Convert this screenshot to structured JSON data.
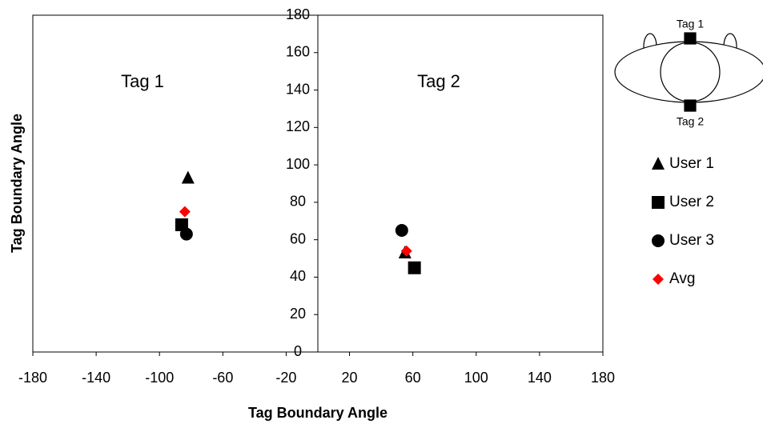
{
  "chart_data": {
    "type": "scatter",
    "xlabel": "Tag Boundary Angle",
    "ylabel": "Tag Boundary Angle",
    "xlim": [
      -180,
      180
    ],
    "xticks": [
      -180,
      -140,
      -100,
      -60,
      -20,
      20,
      60,
      100,
      140,
      180
    ],
    "ylim": [
      0,
      180
    ],
    "yticks": [
      0,
      20,
      40,
      60,
      80,
      100,
      120,
      140,
      160,
      180
    ],
    "grid": false,
    "annotations": [
      "Tag 1",
      "Tag 2"
    ],
    "diagram_labels": [
      "Tag 1",
      "Tag 2"
    ],
    "legend": "right",
    "series": [
      {
        "name": "User 1",
        "marker": "triangle",
        "color": "#000000",
        "x": [
          -82,
          55
        ],
        "y": [
          93,
          53
        ]
      },
      {
        "name": "User 2",
        "marker": "square",
        "color": "#000000",
        "x": [
          -86,
          61
        ],
        "y": [
          68,
          45
        ]
      },
      {
        "name": "User 3",
        "marker": "circle",
        "color": "#000000",
        "x": [
          -83,
          53
        ],
        "y": [
          63,
          65
        ]
      },
      {
        "name": "Avg",
        "marker": "diamond",
        "color": "#ff0000",
        "x": [
          -84,
          56
        ],
        "y": [
          75,
          54
        ]
      }
    ]
  }
}
